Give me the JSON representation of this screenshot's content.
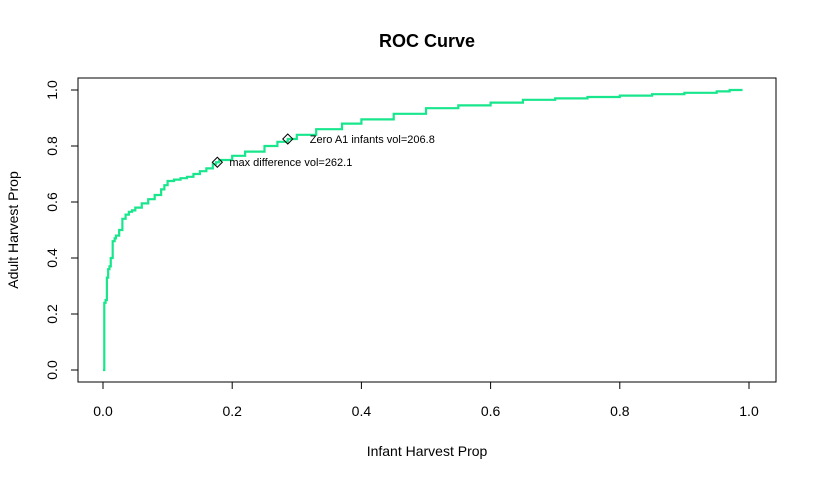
{
  "chart_data": {
    "type": "line",
    "title": "ROC Curve",
    "xlabel": "Infant Harvest Prop",
    "ylabel": "Adult Harvest Prop",
    "xlim": [
      0,
      1
    ],
    "ylim": [
      0,
      1
    ],
    "x_ticks": [
      "0.0",
      "0.2",
      "0.4",
      "0.6",
      "0.8",
      "1.0"
    ],
    "y_ticks": [
      "0.0",
      "0.2",
      "0.4",
      "0.6",
      "0.8",
      "1.0"
    ],
    "grid": false,
    "line_color": "#18e68c",
    "series": [
      {
        "x": [
          0.0,
          0.002,
          0.004,
          0.006,
          0.008,
          0.01,
          0.012,
          0.015,
          0.018,
          0.02,
          0.025,
          0.03,
          0.035,
          0.04,
          0.045,
          0.05,
          0.06,
          0.07,
          0.08,
          0.09,
          0.095,
          0.1,
          0.11,
          0.12,
          0.13,
          0.14,
          0.15,
          0.16,
          0.17,
          0.175,
          0.18,
          0.2,
          0.22,
          0.25,
          0.27,
          0.286,
          0.3,
          0.33,
          0.37,
          0.4,
          0.45,
          0.5,
          0.55,
          0.6,
          0.65,
          0.7,
          0.75,
          0.8,
          0.85,
          0.9,
          0.95,
          0.97,
          0.99
        ],
        "y": [
          0.0,
          0.24,
          0.25,
          0.33,
          0.36,
          0.37,
          0.4,
          0.46,
          0.47,
          0.48,
          0.5,
          0.54,
          0.555,
          0.565,
          0.57,
          0.58,
          0.595,
          0.61,
          0.625,
          0.645,
          0.66,
          0.675,
          0.68,
          0.685,
          0.69,
          0.7,
          0.71,
          0.72,
          0.735,
          0.742,
          0.75,
          0.765,
          0.78,
          0.8,
          0.815,
          0.825,
          0.84,
          0.86,
          0.88,
          0.895,
          0.915,
          0.935,
          0.945,
          0.955,
          0.965,
          0.97,
          0.975,
          0.98,
          0.985,
          0.99,
          0.995,
          1.0,
          1.0
        ]
      }
    ],
    "markers": [
      {
        "x": 0.286,
        "y": 0.825,
        "label": "Zero A1 infants vol=206.8"
      },
      {
        "x": 0.177,
        "y": 0.742,
        "label": "max difference vol=262.1"
      }
    ]
  }
}
